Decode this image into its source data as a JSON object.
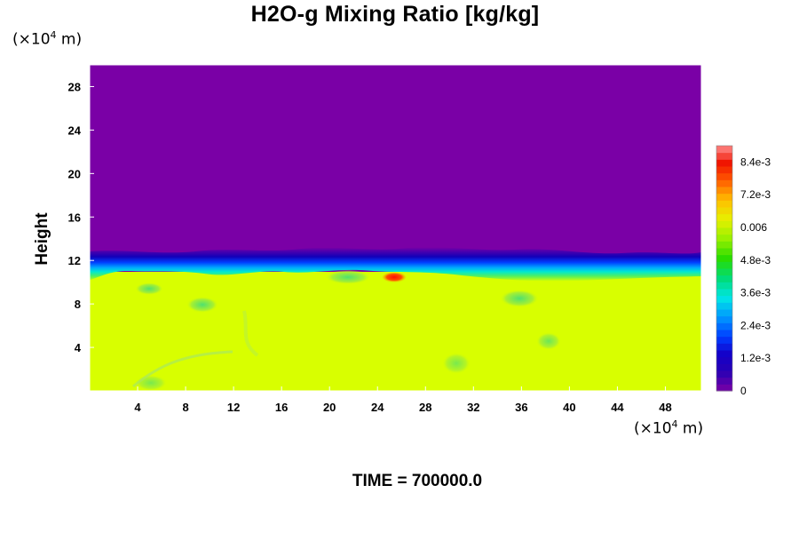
{
  "chart_data": {
    "type": "heatmap",
    "title": "H2O-g Mixing Ratio [kg/kg]",
    "ylabel": "Height",
    "xlabel": "",
    "x_unit_prefix": "(×10",
    "x_unit_exp": "4",
    "x_unit_suffix": " m)",
    "y_unit_prefix": "(×10",
    "y_unit_exp": "4",
    "y_unit_suffix": " m)",
    "xlim": [
      0,
      51
    ],
    "ylim": [
      0,
      30
    ],
    "x_ticks": [
      4,
      8,
      12,
      16,
      20,
      24,
      28,
      32,
      36,
      40,
      44,
      48
    ],
    "y_ticks": [
      4,
      8,
      12,
      16,
      20,
      24,
      28
    ],
    "colorbar": {
      "range": [
        0,
        0.009
      ],
      "tick_values": [
        0,
        0.0012,
        0.0024,
        0.0036,
        0.0048,
        0.006,
        0.0072,
        0.0084
      ],
      "tick_labels": [
        "0",
        "1.2e-3",
        "2.4e-3",
        "3.6e-3",
        "4.8e-3",
        "0.006",
        "7.2e-3",
        "8.4e-3"
      ],
      "colors": [
        "#7a00a6",
        "#1a00c8",
        "#0066ff",
        "#00e0e0",
        "#00c840",
        "#a8f000",
        "#ffe000",
        "#ff9000",
        "#ff2000",
        "#ff8080"
      ]
    },
    "field_description_levels": {
      "upper_dry_layer": 0,
      "lower_moist_layer": 0.0064,
      "max_local": 0.0085
    },
    "moist_layer_top": 10.5,
    "time_label": "TIME = 700000.0"
  }
}
